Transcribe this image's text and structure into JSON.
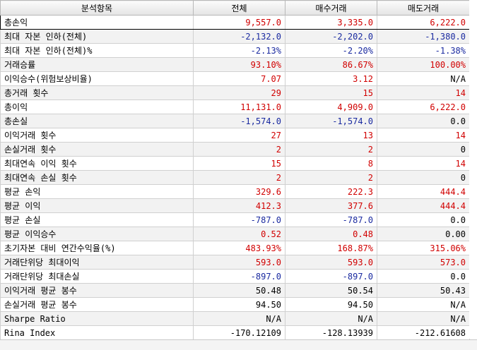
{
  "table": {
    "headers": [
      "분석항목",
      "전체",
      "매수거래",
      "매도거래"
    ],
    "rows": [
      {
        "label": "총손익",
        "values": [
          "9,557.0",
          "3,335.0",
          "6,222.0"
        ],
        "colors": [
          "pos",
          "pos",
          "pos"
        ]
      },
      {
        "label": "최대 자본 인하(전체)",
        "values": [
          "-2,132.0",
          "-2,202.0",
          "-1,380.0"
        ],
        "colors": [
          "neg",
          "neg",
          "neg"
        ]
      },
      {
        "label": "최대 자본 인하(전체)%",
        "values": [
          "-2.13%",
          "-2.20%",
          "-1.38%"
        ],
        "colors": [
          "neg",
          "neg",
          "neg"
        ]
      },
      {
        "label": "거래승률",
        "values": [
          "93.10%",
          "86.67%",
          "100.00%"
        ],
        "colors": [
          "pos",
          "pos",
          "pos"
        ]
      },
      {
        "label": "이익승수(위험보상비율)",
        "values": [
          "7.07",
          "3.12",
          "N/A"
        ],
        "colors": [
          "pos",
          "pos",
          "neu"
        ]
      },
      {
        "label": "총거래 횟수",
        "values": [
          "29",
          "15",
          "14"
        ],
        "colors": [
          "pos",
          "pos",
          "pos"
        ]
      },
      {
        "label": "총이익",
        "values": [
          "11,131.0",
          "4,909.0",
          "6,222.0"
        ],
        "colors": [
          "pos",
          "pos",
          "pos"
        ]
      },
      {
        "label": "총손실",
        "values": [
          "-1,574.0",
          "-1,574.0",
          "0.0"
        ],
        "colors": [
          "neg",
          "neg",
          "neu"
        ]
      },
      {
        "label": "이익거래 횟수",
        "values": [
          "27",
          "13",
          "14"
        ],
        "colors": [
          "pos",
          "pos",
          "pos"
        ]
      },
      {
        "label": "손실거래 횟수",
        "values": [
          "2",
          "2",
          "0"
        ],
        "colors": [
          "pos",
          "pos",
          "neu"
        ]
      },
      {
        "label": "최대연속 이익 횟수",
        "values": [
          "15",
          "8",
          "14"
        ],
        "colors": [
          "pos",
          "pos",
          "pos"
        ]
      },
      {
        "label": "최대연속 손실 횟수",
        "values": [
          "2",
          "2",
          "0"
        ],
        "colors": [
          "pos",
          "pos",
          "neu"
        ]
      },
      {
        "label": "평균 손익",
        "values": [
          "329.6",
          "222.3",
          "444.4"
        ],
        "colors": [
          "pos",
          "pos",
          "pos"
        ]
      },
      {
        "label": "평균 이익",
        "values": [
          "412.3",
          "377.6",
          "444.4"
        ],
        "colors": [
          "pos",
          "pos",
          "pos"
        ]
      },
      {
        "label": "평균 손실",
        "values": [
          "-787.0",
          "-787.0",
          "0.0"
        ],
        "colors": [
          "neg",
          "neg",
          "neu"
        ]
      },
      {
        "label": "평균 이익승수",
        "values": [
          "0.52",
          "0.48",
          "0.00"
        ],
        "colors": [
          "pos",
          "pos",
          "neu"
        ]
      },
      {
        "label": "초기자본 대비 연간수익율(%)",
        "values": [
          "483.93%",
          "168.87%",
          "315.06%"
        ],
        "colors": [
          "pos",
          "pos",
          "pos"
        ]
      },
      {
        "label": "거래단위당 최대이익",
        "values": [
          "593.0",
          "593.0",
          "573.0"
        ],
        "colors": [
          "pos",
          "pos",
          "pos"
        ]
      },
      {
        "label": "거래단위당 최대손실",
        "values": [
          "-897.0",
          "-897.0",
          "0.0"
        ],
        "colors": [
          "neg",
          "neg",
          "neu"
        ]
      },
      {
        "label": "이익거래 평균 봉수",
        "values": [
          "50.48",
          "50.54",
          "50.43"
        ],
        "colors": [
          "neu",
          "neu",
          "neu"
        ]
      },
      {
        "label": "손실거래 평균 봉수",
        "values": [
          "94.50",
          "94.50",
          "N/A"
        ],
        "colors": [
          "neu",
          "neu",
          "neu"
        ]
      },
      {
        "label": "Sharpe Ratio",
        "values": [
          "N/A",
          "N/A",
          "N/A"
        ],
        "colors": [
          "neu",
          "neu",
          "neu"
        ]
      },
      {
        "label": "Rina Index",
        "values": [
          "-170.12109",
          "-128.13939",
          "-212.61608"
        ],
        "colors": [
          "neu",
          "neu",
          "neu"
        ]
      }
    ]
  },
  "colors": {
    "positive": "#d10000",
    "negative": "#1a2aa0",
    "neutral": "#000000"
  }
}
